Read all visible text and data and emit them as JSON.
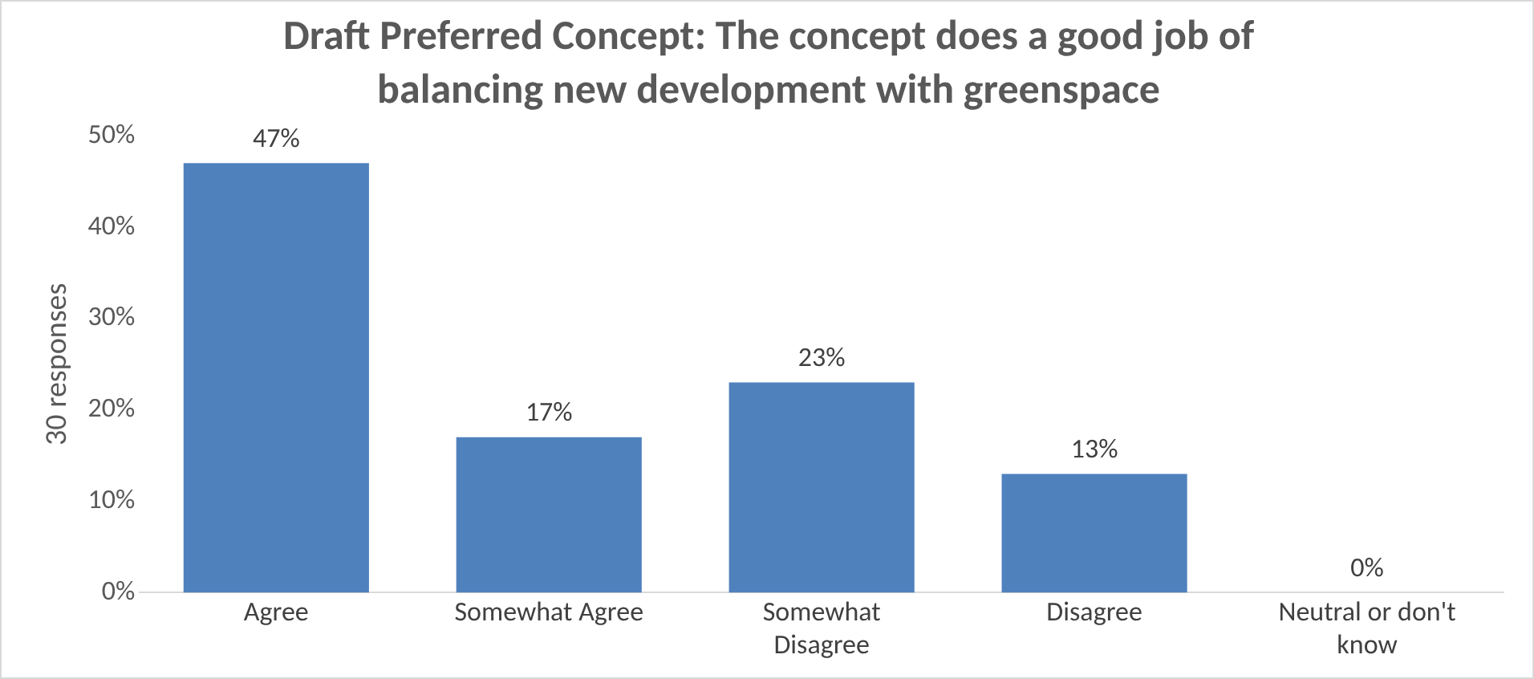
{
  "chart_data": {
    "type": "bar",
    "title": "Draft Preferred Concept: The concept does a good job of balancing new development with greenspace",
    "ylabel": "30 responses",
    "categories": [
      "Agree",
      "Somewhat Agree",
      "Somewhat Disagree",
      "Disagree",
      "Neutral or don't know"
    ],
    "values": [
      47,
      17,
      23,
      13,
      0
    ],
    "color": "#4f81bd",
    "value_labels": [
      "47%",
      "17%",
      "23%",
      "13%",
      "0%"
    ],
    "ylim": [
      0,
      50
    ],
    "yticks": [
      {
        "value": 0,
        "label": "0%"
      },
      {
        "value": 10,
        "label": "10%"
      },
      {
        "value": 20,
        "label": "20%"
      },
      {
        "value": 30,
        "label": "30%"
      },
      {
        "value": 40,
        "label": "40%"
      },
      {
        "value": 50,
        "label": "50%"
      }
    ],
    "grid": false,
    "legend": false
  }
}
